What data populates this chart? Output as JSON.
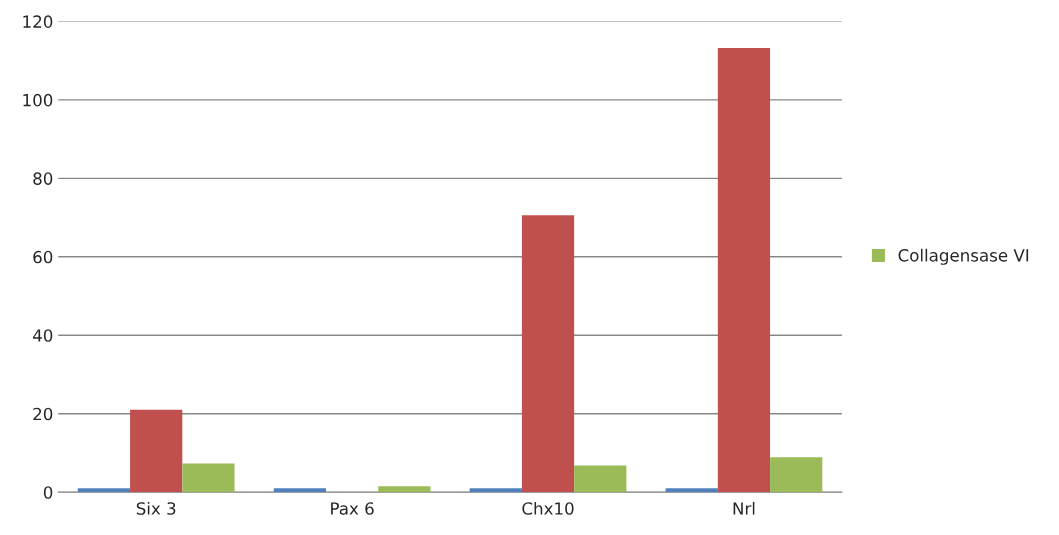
{
  "chart_data": {
    "type": "bar",
    "categories": [
      "Six 3",
      "Pax 6",
      "Chx10",
      "Nrl"
    ],
    "series": [
      {
        "color": "#4f81bd",
        "values": [
          1,
          1,
          1,
          1
        ]
      },
      {
        "color": "#c0504d",
        "values": [
          21,
          null,
          70.6,
          113.2
        ]
      },
      {
        "name": "Collagensase VI",
        "color": "#9bbb59",
        "values": [
          7.3,
          1.5,
          6.8,
          8.9
        ]
      }
    ],
    "ylim": [
      0,
      120
    ],
    "yticks": [
      0,
      20,
      40,
      60,
      80,
      100,
      120
    ],
    "grid": "y",
    "legend": "right"
  }
}
